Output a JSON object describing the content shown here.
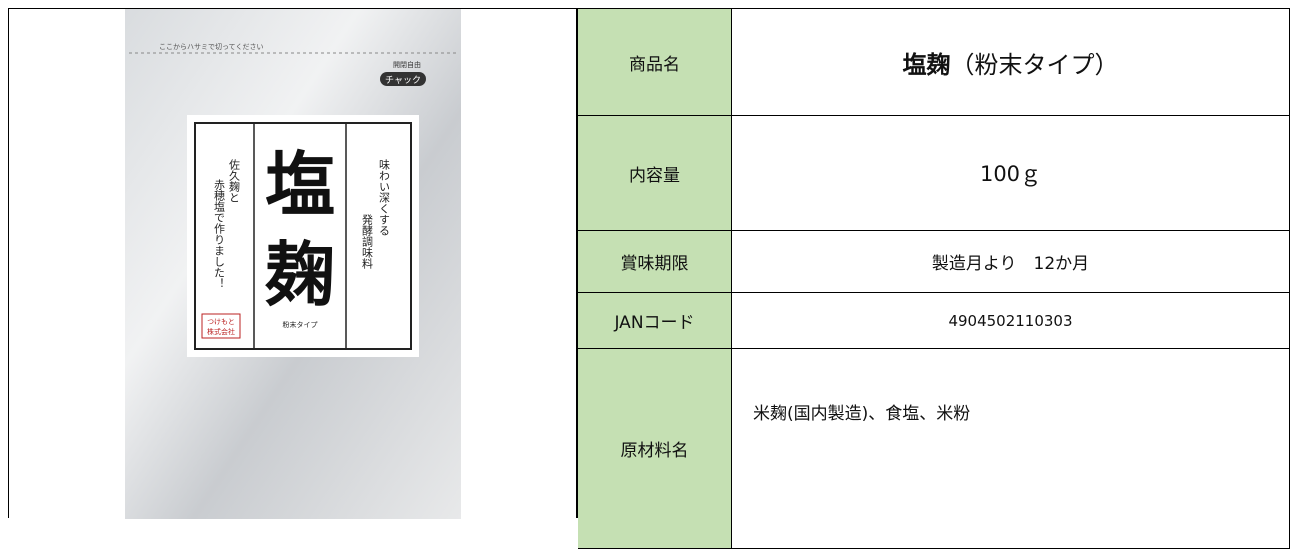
{
  "product_image": {
    "cut_line": "ここからハサミで切ってください",
    "zipper_note": "開閉自由",
    "zipper": "チャック",
    "name_1": "塩",
    "name_2": "麹",
    "tagline_1": "味わい深くする",
    "tagline_2": "発酵調味料",
    "origin_1": "佐久麹と",
    "origin_2": "赤穂塩で作りました！",
    "form": "粉末タイプ",
    "maker_1": "つけもと",
    "maker_2": "株式会社"
  },
  "table": {
    "rows": [
      {
        "label": "商品名",
        "value_bold": "塩麹",
        "value": "（粉末タイプ）"
      },
      {
        "label": "内容量",
        "value": "100ｇ"
      },
      {
        "label": "賞味期限",
        "value": "製造月より　12か月"
      },
      {
        "label": "JANコード",
        "value": "4904502110303"
      },
      {
        "label": "原材料名",
        "value": "米麹(国内製造)、食塩、米粉"
      }
    ]
  }
}
